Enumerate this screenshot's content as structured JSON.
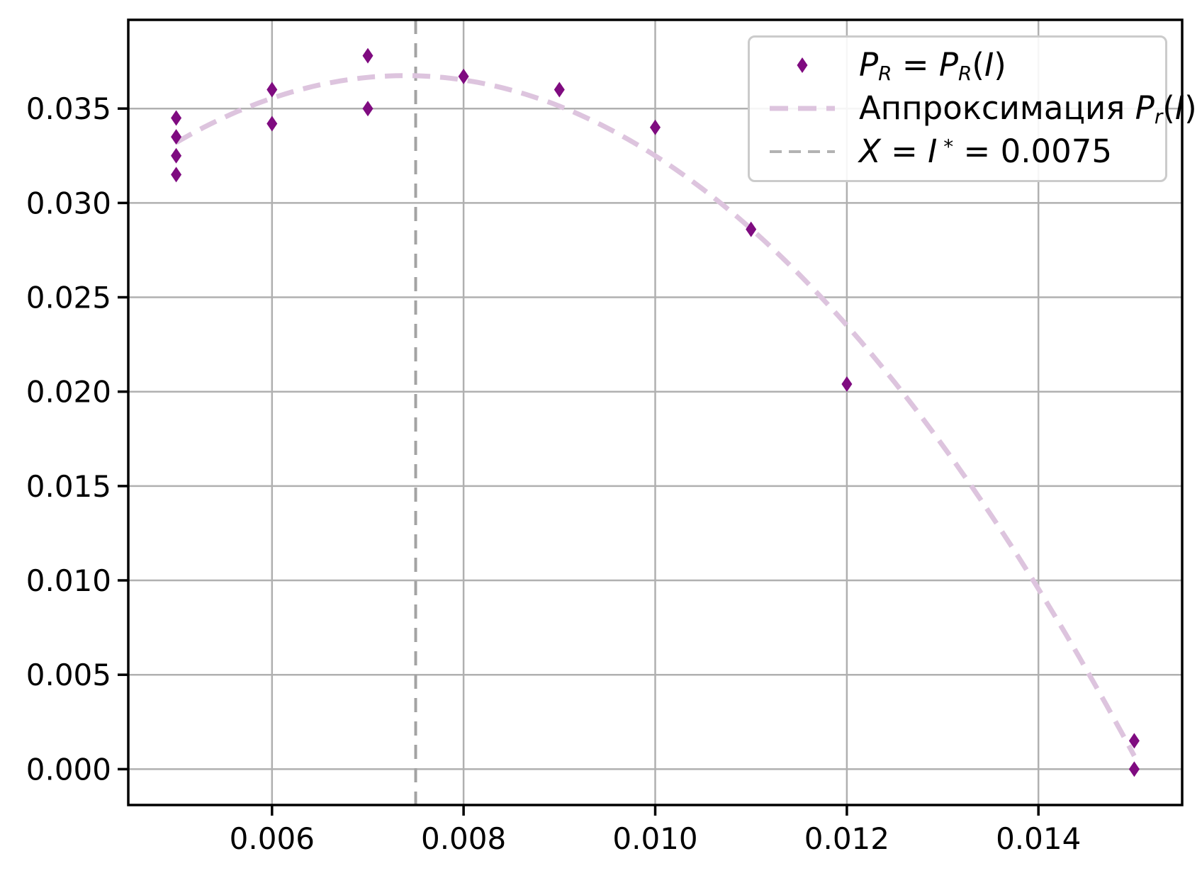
{
  "chart_data": {
    "type": "scatter",
    "title": "",
    "xlabel": "",
    "ylabel": "",
    "xlim": [
      0.0045,
      0.0155
    ],
    "ylim": [
      -0.0019,
      0.0397
    ],
    "x_ticks": [
      0.006,
      0.008,
      0.01,
      0.012,
      0.014
    ],
    "x_tick_labels": [
      "0.006",
      "0.008",
      "0.010",
      "0.012",
      "0.014"
    ],
    "y_ticks": [
      0.0,
      0.005,
      0.01,
      0.015,
      0.02,
      0.025,
      0.03,
      0.035
    ],
    "y_tick_labels": [
      "0.000",
      "0.005",
      "0.010",
      "0.015",
      "0.020",
      "0.025",
      "0.030",
      "0.035"
    ],
    "grid": true,
    "grid_color": "#b0b0b0",
    "spine_color": "#000000",
    "legend_position": "upper right",
    "series": [
      {
        "name": "P_R = P_R(I)",
        "marker": "thin-diamond",
        "color": "#7f0b80",
        "points": [
          {
            "x": 0.005,
            "y": 0.0345
          },
          {
            "x": 0.005,
            "y": 0.0335
          },
          {
            "x": 0.005,
            "y": 0.0325
          },
          {
            "x": 0.005,
            "y": 0.0315
          },
          {
            "x": 0.006,
            "y": 0.036
          },
          {
            "x": 0.006,
            "y": 0.0342
          },
          {
            "x": 0.007,
            "y": 0.0378
          },
          {
            "x": 0.007,
            "y": 0.035
          },
          {
            "x": 0.008,
            "y": 0.0367
          },
          {
            "x": 0.009,
            "y": 0.036
          },
          {
            "x": 0.01,
            "y": 0.034
          },
          {
            "x": 0.011,
            "y": 0.0286
          },
          {
            "x": 0.012,
            "y": 0.0204
          },
          {
            "x": 0.015,
            "y": 0.0015
          },
          {
            "x": 0.015,
            "y": 0.0
          }
        ]
      }
    ],
    "fit_curve": {
      "name": "Аппроксимация P_r(I)",
      "type": "quadratic",
      "coeffs": {
        "c0": 0.0028,
        "c1": 9.19,
        "c2": -622
      },
      "x_range": [
        0.005,
        0.015
      ],
      "color": "#ddc4de",
      "dash": "25 14",
      "width": 7
    },
    "vline": {
      "name": "X = I* = 0.0075",
      "x": 0.0075,
      "color": "#a3a3a3",
      "dash": "20 13",
      "width": 4
    }
  },
  "legend": {
    "items": [
      {
        "id": "scatter",
        "label_plain": "P_R = P_R(I)",
        "sample": {
          "kind": "diamond-marker",
          "color": "#7f0b80"
        },
        "parts": [
          {
            "t": "P",
            "italic": true
          },
          {
            "t": "R",
            "italic": true,
            "script": "sub"
          },
          {
            "t": " = "
          },
          {
            "t": "P",
            "italic": true
          },
          {
            "t": "R",
            "italic": true,
            "script": "sub"
          },
          {
            "t": "("
          },
          {
            "t": "I",
            "italic": true
          },
          {
            "t": ")"
          }
        ]
      },
      {
        "id": "fit",
        "label_plain": "Аппроксимация P_r(I)",
        "sample": {
          "kind": "dashed-line",
          "color": "#ddc4de",
          "width": 7,
          "dash": "26 14"
        },
        "parts": [
          {
            "t": "Аппроксимация "
          },
          {
            "t": "P",
            "italic": true
          },
          {
            "t": "r",
            "italic": true,
            "script": "sub"
          },
          {
            "t": "("
          },
          {
            "t": "I",
            "italic": true
          },
          {
            "t": ")"
          }
        ]
      },
      {
        "id": "vline",
        "label_plain": "X = I* = 0.0075",
        "sample": {
          "kind": "dashed-line",
          "color": "#b3b3b3",
          "width": 4,
          "dash": "17 10"
        },
        "parts": [
          {
            "t": "X",
            "italic": true
          },
          {
            "t": " = "
          },
          {
            "t": "I",
            "italic": true
          },
          {
            "t": " *",
            "script": "sup"
          },
          {
            "t": " = 0.0075"
          }
        ]
      }
    ]
  }
}
